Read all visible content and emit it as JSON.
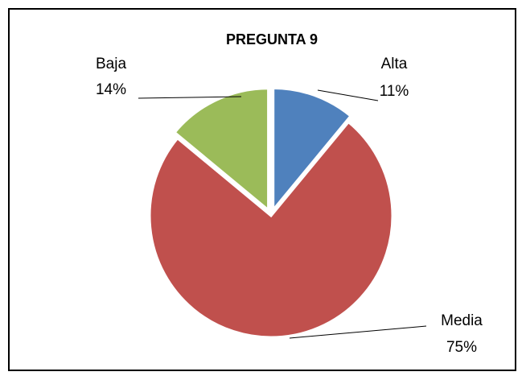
{
  "chart_data": {
    "type": "pie",
    "title": "PREGUNTA 9",
    "categories": [
      "Alta",
      "Media",
      "Baja"
    ],
    "values": [
      11,
      75,
      14
    ],
    "value_labels": [
      "11%",
      "75%",
      "14%"
    ],
    "colors": [
      "#4f81bd",
      "#c0504d",
      "#9bbb59"
    ]
  }
}
